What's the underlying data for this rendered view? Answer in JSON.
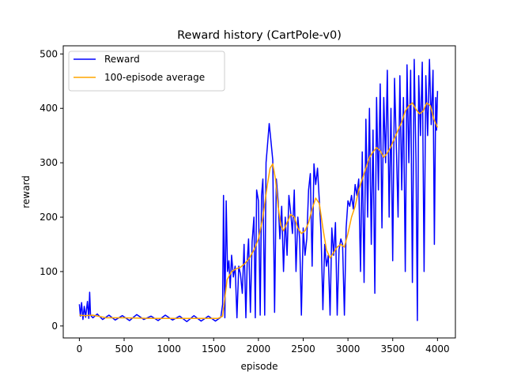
{
  "chart_data": {
    "type": "line",
    "title": "Reward history (CartPole-v0)",
    "xlabel": "episode",
    "ylabel": "reward",
    "xlim": [
      -180,
      4200
    ],
    "ylim": [
      -22,
      515
    ],
    "xticks": [
      0,
      500,
      1000,
      1500,
      2000,
      2500,
      3000,
      3500,
      4000
    ],
    "yticks": [
      0,
      100,
      200,
      300,
      400,
      500
    ],
    "grid": false,
    "legend_position": "top-left",
    "series": [
      {
        "name": "Reward",
        "color": "#0000ff",
        "points": [
          [
            0,
            40
          ],
          [
            12,
            18
          ],
          [
            25,
            43
          ],
          [
            40,
            12
          ],
          [
            55,
            36
          ],
          [
            70,
            16
          ],
          [
            90,
            45
          ],
          [
            105,
            14
          ],
          [
            115,
            62
          ],
          [
            125,
            20
          ],
          [
            150,
            15
          ],
          [
            200,
            22
          ],
          [
            260,
            12
          ],
          [
            330,
            20
          ],
          [
            400,
            11
          ],
          [
            480,
            19
          ],
          [
            560,
            10
          ],
          [
            640,
            21
          ],
          [
            720,
            12
          ],
          [
            800,
            18
          ],
          [
            880,
            10
          ],
          [
            960,
            20
          ],
          [
            1040,
            11
          ],
          [
            1120,
            18
          ],
          [
            1200,
            8
          ],
          [
            1280,
            19
          ],
          [
            1360,
            9
          ],
          [
            1440,
            18
          ],
          [
            1520,
            9
          ],
          [
            1580,
            16
          ],
          [
            1600,
            40
          ],
          [
            1610,
            240
          ],
          [
            1625,
            15
          ],
          [
            1640,
            230
          ],
          [
            1655,
            100
          ],
          [
            1670,
            120
          ],
          [
            1685,
            70
          ],
          [
            1700,
            130
          ],
          [
            1720,
            90
          ],
          [
            1740,
            110
          ],
          [
            1760,
            15
          ],
          [
            1780,
            110
          ],
          [
            1800,
            95
          ],
          [
            1820,
            60
          ],
          [
            1840,
            150
          ],
          [
            1860,
            15
          ],
          [
            1875,
            120
          ],
          [
            1890,
            160
          ],
          [
            1910,
            25
          ],
          [
            1930,
            155
          ],
          [
            1950,
            200
          ],
          [
            1965,
            15
          ],
          [
            1980,
            250
          ],
          [
            2000,
            230
          ],
          [
            2020,
            20
          ],
          [
            2035,
            240
          ],
          [
            2050,
            270
          ],
          [
            2070,
            20
          ],
          [
            2085,
            300
          ],
          [
            2100,
            330
          ],
          [
            2120,
            372
          ],
          [
            2140,
            340
          ],
          [
            2160,
            305
          ],
          [
            2180,
            25
          ],
          [
            2200,
            270
          ],
          [
            2220,
            230
          ],
          [
            2240,
            160
          ],
          [
            2260,
            220
          ],
          [
            2280,
            100
          ],
          [
            2300,
            200
          ],
          [
            2320,
            130
          ],
          [
            2340,
            240
          ],
          [
            2360,
            210
          ],
          [
            2380,
            170
          ],
          [
            2400,
            250
          ],
          [
            2420,
            100
          ],
          [
            2440,
            200
          ],
          [
            2460,
            160
          ],
          [
            2480,
            20
          ],
          [
            2500,
            180
          ],
          [
            2520,
            130
          ],
          [
            2540,
            160
          ],
          [
            2560,
            250
          ],
          [
            2580,
            280
          ],
          [
            2600,
            110
          ],
          [
            2620,
            298
          ],
          [
            2640,
            260
          ],
          [
            2660,
            290
          ],
          [
            2680,
            230
          ],
          [
            2700,
            170
          ],
          [
            2720,
            30
          ],
          [
            2740,
            150
          ],
          [
            2760,
            110
          ],
          [
            2780,
            130
          ],
          [
            2800,
            20
          ],
          [
            2820,
            180
          ],
          [
            2840,
            130
          ],
          [
            2860,
            190
          ],
          [
            2880,
            20
          ],
          [
            2900,
            140
          ],
          [
            2920,
            160
          ],
          [
            2940,
            150
          ],
          [
            2960,
            20
          ],
          [
            2980,
            180
          ],
          [
            3000,
            230
          ],
          [
            3020,
            220
          ],
          [
            3040,
            240
          ],
          [
            3060,
            215
          ],
          [
            3080,
            260
          ],
          [
            3100,
            240
          ],
          [
            3120,
            270
          ],
          [
            3140,
            100
          ],
          [
            3160,
            320
          ],
          [
            3180,
            80
          ],
          [
            3200,
            380
          ],
          [
            3220,
            200
          ],
          [
            3240,
            400
          ],
          [
            3260,
            150
          ],
          [
            3280,
            360
          ],
          [
            3300,
            60
          ],
          [
            3320,
            420
          ],
          [
            3340,
            250
          ],
          [
            3360,
            445
          ],
          [
            3380,
            180
          ],
          [
            3400,
            420
          ],
          [
            3420,
            300
          ],
          [
            3440,
            470
          ],
          [
            3460,
            200
          ],
          [
            3480,
            400
          ],
          [
            3500,
            120
          ],
          [
            3520,
            455
          ],
          [
            3540,
            330
          ],
          [
            3560,
            200
          ],
          [
            3580,
            460
          ],
          [
            3600,
            250
          ],
          [
            3620,
            420
          ],
          [
            3640,
            100
          ],
          [
            3660,
            480
          ],
          [
            3680,
            300
          ],
          [
            3700,
            470
          ],
          [
            3720,
            80
          ],
          [
            3740,
            490
          ],
          [
            3760,
            300
          ],
          [
            3775,
            10
          ],
          [
            3790,
            460
          ],
          [
            3810,
            350
          ],
          [
            3830,
            485
          ],
          [
            3850,
            100
          ],
          [
            3870,
            460
          ],
          [
            3890,
            350
          ],
          [
            3910,
            490
          ],
          [
            3930,
            370
          ],
          [
            3950,
            470
          ],
          [
            3965,
            150
          ],
          [
            3980,
            420
          ],
          [
            3990,
            360
          ],
          [
            4000,
            432
          ]
        ]
      },
      {
        "name": "100-episode average",
        "color": "#ffa500",
        "points": [
          [
            0,
            20
          ],
          [
            60,
            19
          ],
          [
            150,
            20
          ],
          [
            300,
            15
          ],
          [
            500,
            15
          ],
          [
            800,
            14
          ],
          [
            1100,
            14
          ],
          [
            1400,
            14
          ],
          [
            1550,
            14
          ],
          [
            1600,
            18
          ],
          [
            1650,
            85
          ],
          [
            1700,
            100
          ],
          [
            1750,
            105
          ],
          [
            1800,
            108
          ],
          [
            1850,
            115
          ],
          [
            1900,
            125
          ],
          [
            1950,
            140
          ],
          [
            2000,
            160
          ],
          [
            2050,
            200
          ],
          [
            2100,
            260
          ],
          [
            2130,
            290
          ],
          [
            2160,
            298
          ],
          [
            2190,
            270
          ],
          [
            2220,
            220
          ],
          [
            2250,
            185
          ],
          [
            2280,
            175
          ],
          [
            2320,
            190
          ],
          [
            2360,
            205
          ],
          [
            2400,
            200
          ],
          [
            2440,
            180
          ],
          [
            2480,
            170
          ],
          [
            2520,
            175
          ],
          [
            2560,
            190
          ],
          [
            2600,
            215
          ],
          [
            2640,
            235
          ],
          [
            2680,
            225
          ],
          [
            2720,
            180
          ],
          [
            2760,
            140
          ],
          [
            2800,
            125
          ],
          [
            2840,
            135
          ],
          [
            2880,
            145
          ],
          [
            2920,
            150
          ],
          [
            2960,
            145
          ],
          [
            3000,
            170
          ],
          [
            3040,
            200
          ],
          [
            3080,
            220
          ],
          [
            3120,
            250
          ],
          [
            3160,
            270
          ],
          [
            3200,
            290
          ],
          [
            3240,
            310
          ],
          [
            3280,
            320
          ],
          [
            3320,
            328
          ],
          [
            3360,
            322
          ],
          [
            3400,
            310
          ],
          [
            3440,
            318
          ],
          [
            3480,
            330
          ],
          [
            3520,
            345
          ],
          [
            3560,
            360
          ],
          [
            3600,
            375
          ],
          [
            3640,
            395
          ],
          [
            3680,
            405
          ],
          [
            3720,
            410
          ],
          [
            3760,
            398
          ],
          [
            3800,
            390
          ],
          [
            3840,
            395
          ],
          [
            3880,
            410
          ],
          [
            3920,
            405
          ],
          [
            3960,
            380
          ],
          [
            4000,
            365
          ]
        ]
      }
    ]
  }
}
